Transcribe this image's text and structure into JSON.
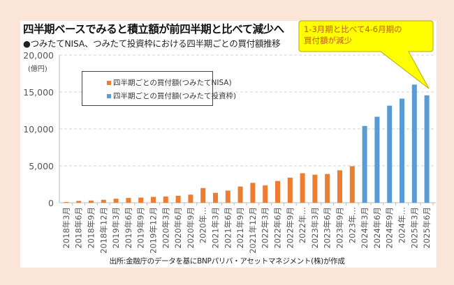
{
  "title": "四半期ベースでみると積立額が前四半期と比べて減少へ",
  "subtitle": "●つみたてNISA、つみたて投資枠における四半期ごとの買付額推移",
  "footnote": "出所:金融庁のデータを基にBNPパリバ・アセットマネジメント(株)が作成",
  "callout": {
    "line1": "1-3月期と比べて4-6月期の",
    "line2": "買付額が減少",
    "fill": "#ffff00",
    "text_color": "#c05a10"
  },
  "chart_data": {
    "type": "bar",
    "title": "",
    "ylabel": "(億円)",
    "ylim": [
      0,
      20000
    ],
    "yticks": [
      "0",
      "5,000",
      "10,000",
      "15,000",
      "20,000"
    ],
    "ytick_values": [
      0,
      5000,
      10000,
      15000,
      20000
    ],
    "grid": true,
    "legend_placement": "top-left",
    "categories": [
      "2018年3月",
      "2018年6月",
      "2018年9月",
      "2018年12月",
      "2019年3月",
      "2019年6月",
      "2019年9月",
      "2019年12月",
      "2020年3月",
      "2020年6月",
      "2020年9月",
      "2020年…",
      "2021年3月",
      "2021年6月",
      "2021年9月",
      "2021年12月",
      "2022年3月",
      "2022年6月",
      "2022年9月",
      "2022年…",
      "2023年3月",
      "2023年6月",
      "2023年9月",
      "2023年…",
      "2024年3月",
      "2024年6月",
      "2024年9月",
      "2024年…",
      "2025年3月",
      "2025年6月"
    ],
    "series": [
      {
        "name": "四半期ごとの買付額(つみたてNISA)",
        "color": "#ed7d31",
        "values": [
          100,
          250,
          300,
          400,
          550,
          650,
          700,
          800,
          850,
          950,
          1100,
          2000,
          1350,
          1650,
          2200,
          2700,
          2350,
          2950,
          3400,
          4000,
          3800,
          3900,
          4400,
          4950,
          null,
          null,
          null,
          null,
          null,
          null
        ]
      },
      {
        "name": "四半期ごとの買付額(つみたて投資枠)",
        "color": "#5b9bd5",
        "values": [
          null,
          null,
          null,
          null,
          null,
          null,
          null,
          null,
          null,
          null,
          null,
          null,
          null,
          null,
          null,
          null,
          null,
          null,
          null,
          null,
          null,
          null,
          null,
          null,
          10400,
          11650,
          13150,
          14100,
          16000,
          14550
        ]
      }
    ]
  }
}
